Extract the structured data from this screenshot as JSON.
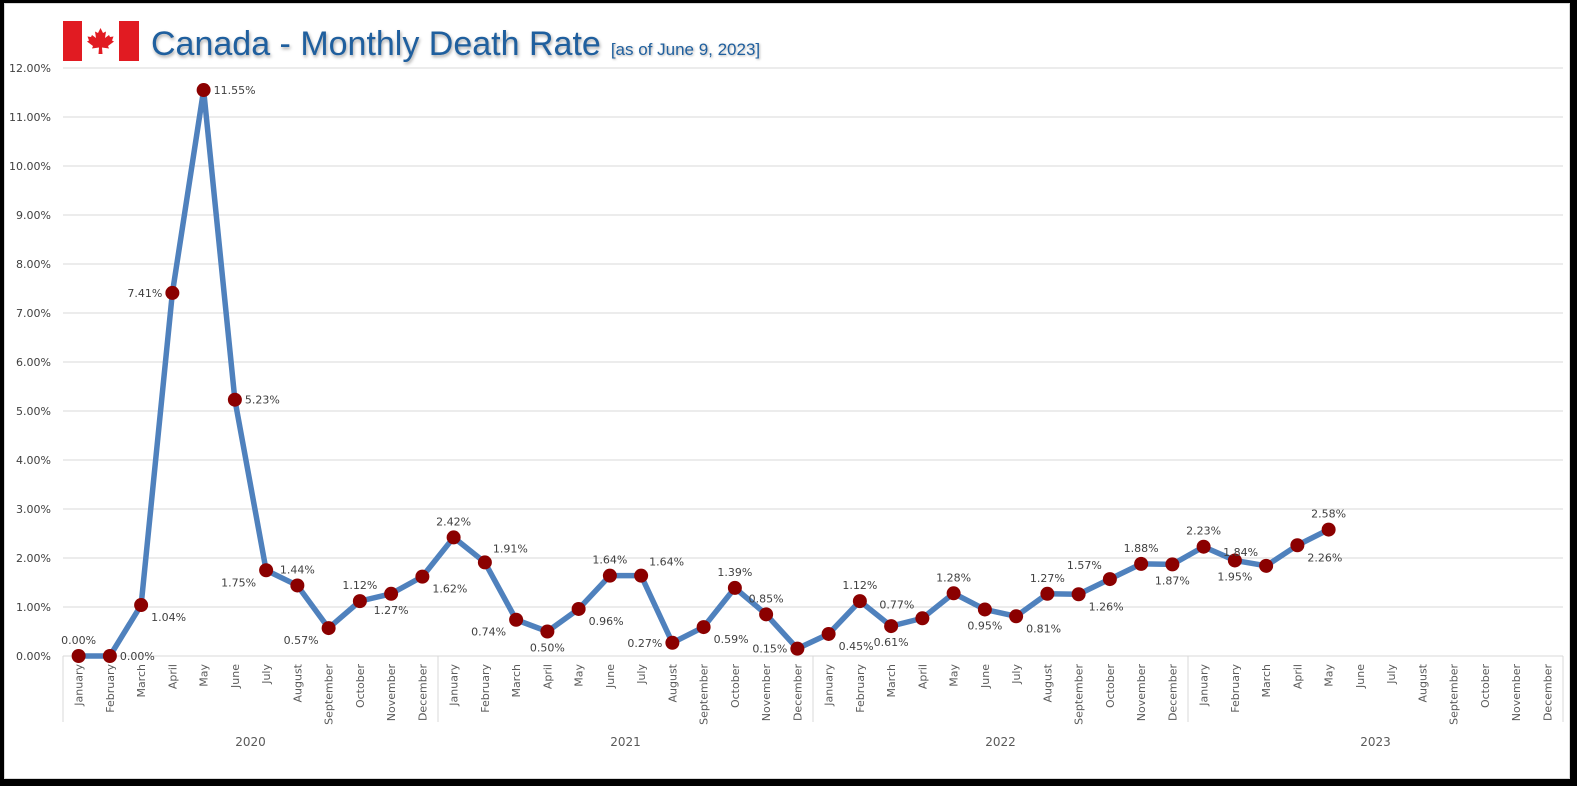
{
  "chart_data": {
    "type": "line",
    "title": "Canada - Monthly Death Rate",
    "subtitle": "[as of June 9, 2023]",
    "xlabel": "",
    "ylabel": "",
    "ylim": [
      0,
      12
    ],
    "y_ticks": [
      "0.00%",
      "1.00%",
      "2.00%",
      "3.00%",
      "4.00%",
      "5.00%",
      "6.00%",
      "7.00%",
      "8.00%",
      "9.00%",
      "10.00%",
      "11.00%",
      "12.00%"
    ],
    "grid": true,
    "legend": "none",
    "years": [
      "2020",
      "2021",
      "2022",
      "2023"
    ],
    "months": [
      "January",
      "February",
      "March",
      "April",
      "May",
      "June",
      "July",
      "August",
      "September",
      "October",
      "November",
      "December"
    ],
    "series": [
      {
        "name": "Monthly Death Rate",
        "color": "#4f81bd",
        "marker_color": "#8b0000",
        "values": [
          0.0,
          0.0,
          1.04,
          7.41,
          11.55,
          5.23,
          1.75,
          1.44,
          0.57,
          1.12,
          1.27,
          1.62,
          2.42,
          1.91,
          0.74,
          0.5,
          0.96,
          1.64,
          1.64,
          0.27,
          0.59,
          1.39,
          0.85,
          0.15,
          0.45,
          1.12,
          0.61,
          0.77,
          1.28,
          0.95,
          0.81,
          1.27,
          1.26,
          1.57,
          1.88,
          1.87,
          2.23,
          1.95,
          1.84,
          2.26,
          2.58,
          null,
          null,
          null,
          null,
          null,
          null,
          null
        ],
        "labels": [
          "0.00%",
          "0.00%",
          "1.04%",
          "7.41%",
          "11.55%",
          "5.23%",
          "1.75%",
          "1.44%",
          "0.57%",
          "1.12%",
          "1.27%",
          "1.62%",
          "2.42%",
          "1.91%",
          "0.74%",
          "0.50%",
          "0.96%",
          "1.64%",
          "1.64%",
          "0.27%",
          "0.59%",
          "1.39%",
          "0.85%",
          "0.15%",
          "0.45%",
          "1.12%",
          "0.61%",
          "0.77%",
          "1.28%",
          "0.95%",
          "0.81%",
          "1.27%",
          "1.26%",
          "1.57%",
          "1.88%",
          "1.87%",
          "2.23%",
          "1.95%",
          "1.84%",
          "2.26%",
          "2.58%",
          null,
          null,
          null,
          null,
          null,
          null,
          null
        ],
        "label_positions": [
          "above",
          "right",
          "below-right",
          "left",
          "right",
          "right",
          "below-left",
          "above",
          "below-left",
          "above",
          "below",
          "below-right",
          "above",
          "above-right",
          "below-left",
          "below",
          "below-right",
          "above",
          "above-right",
          "left",
          "below-right",
          "above",
          "above",
          "left",
          "below-right",
          "above",
          "below",
          "above-left",
          "above",
          "below",
          "below-right",
          "above",
          "below-right",
          "above-left",
          "above",
          "below",
          "above",
          "below",
          "above-left",
          "below-right",
          "above",
          null,
          null,
          null,
          null,
          null,
          null,
          null
        ]
      }
    ]
  },
  "colors": {
    "title": "#1f5f9e",
    "flag_red": "#e11b22",
    "grid": "#d9d9d9"
  },
  "flag_icon": "canada-flag-icon"
}
